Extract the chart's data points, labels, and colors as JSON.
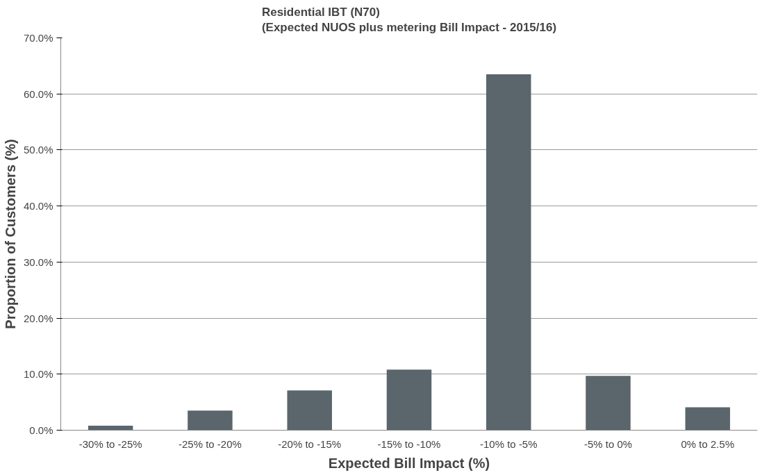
{
  "chart_data": {
    "type": "bar",
    "title": "Residential IBT (N70)\n(Expected NUOS plus metering Bill Impact - 2015/16)",
    "xlabel": "Expected Bill Impact (%)",
    "ylabel": "Proportion of Customers (%)",
    "categories": [
      "-30% to -25%",
      "-25% to -20%",
      "-20% to -15%",
      "-15% to -10%",
      "-10% to -5%",
      "-5% to 0%",
      "0% to 2.5%"
    ],
    "series": [
      {
        "color": "#5a656c",
        "values": [
          0.8,
          3.5,
          7.1,
          10.8,
          63.5,
          9.7,
          4.1
        ]
      }
    ],
    "ylim": [
      0,
      70
    ],
    "yticks": [
      {
        "value": 0,
        "label": "0.0%"
      },
      {
        "value": 10,
        "label": "10.0%"
      },
      {
        "value": 20,
        "label": "20.0%"
      },
      {
        "value": 30,
        "label": "30.0%"
      },
      {
        "value": 40,
        "label": "40.0%"
      },
      {
        "value": 50,
        "label": "50.0%"
      },
      {
        "value": 60,
        "label": "60.0%"
      },
      {
        "value": 70,
        "label": "70.0%"
      }
    ],
    "grid": "y"
  }
}
